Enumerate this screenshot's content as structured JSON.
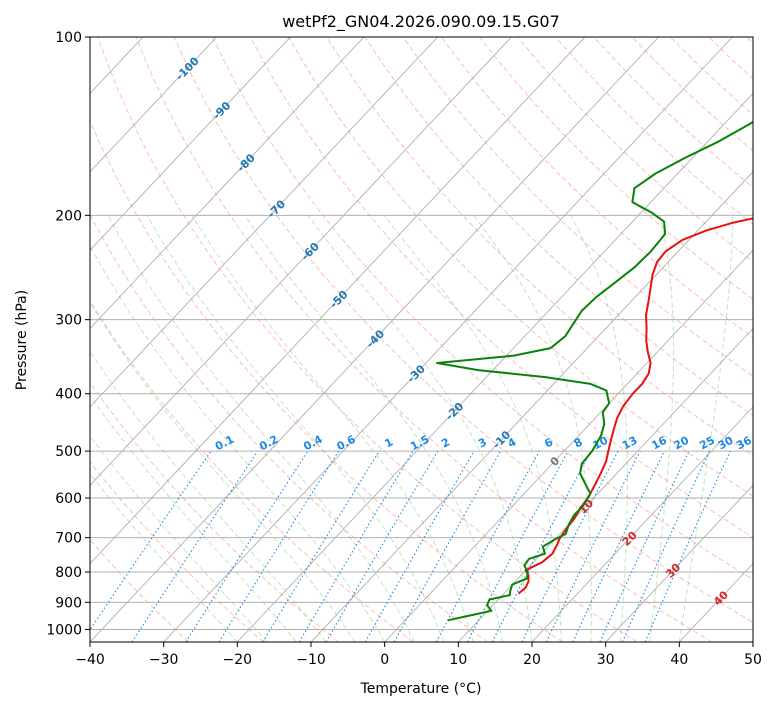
{
  "chart_data": {
    "type": "line",
    "subtype": "skew-t log-p diagram",
    "title": "wetPf2_GN04.2026.090.09.15.G07",
    "xlabel": "Temperature (°C)",
    "ylabel": "Pressure (hPa)",
    "xlim": [
      -40,
      50
    ],
    "ylim": [
      1050,
      100
    ],
    "x_ticks": [
      -40,
      -30,
      -20,
      -10,
      0,
      10,
      20,
      30,
      40,
      50
    ],
    "x_tick_labels": [
      "−40",
      "−30",
      "−20",
      "−10",
      "0",
      "10",
      "20",
      "30",
      "40",
      "50"
    ],
    "y_ticks": [
      100,
      200,
      300,
      400,
      500,
      600,
      700,
      800,
      900,
      1000
    ],
    "y_tick_labels": [
      "100",
      "200",
      "300",
      "400",
      "500",
      "600",
      "700",
      "800",
      "900",
      "1000"
    ],
    "grid": true,
    "isotherm_labels": [
      {
        "label": "-100",
        "p": 113
      },
      {
        "label": "-90",
        "p": 133
      },
      {
        "label": "-80",
        "p": 163
      },
      {
        "label": "-70",
        "p": 195
      },
      {
        "label": "-60",
        "p": 230
      },
      {
        "label": "-50",
        "p": 277
      },
      {
        "label": "-40",
        "p": 323
      },
      {
        "label": "-30",
        "p": 370
      },
      {
        "label": "-20",
        "p": 428
      },
      {
        "label": "-10",
        "p": 478
      },
      {
        "label": "0",
        "p": 520
      },
      {
        "label": "10",
        "p": 620
      },
      {
        "label": "20",
        "p": 702
      },
      {
        "label": "30",
        "p": 795
      },
      {
        "label": "40",
        "p": 885
      }
    ],
    "mixing_ratio_labels": [
      "0.1",
      "0.2",
      "0.4",
      "0.6",
      "1",
      "1.5",
      "2",
      "3",
      "4",
      "6",
      "8",
      "10",
      "13",
      "16",
      "20",
      "25",
      "30",
      "36"
    ],
    "mixing_ratio_label_positions": [
      -21.5,
      -15.5,
      -9.5,
      -5.0,
      0.8,
      5.0,
      8.5,
      13.5,
      17.5,
      22.5,
      26.5,
      29.5,
      33.5,
      37.5,
      40.5,
      44.0,
      46.5,
      49.0
    ],
    "series": [
      {
        "name": "Temperature",
        "color": "#e8110f",
        "points": [
          [
            12.0,
            870
          ],
          [
            12.2,
            850
          ],
          [
            11.8,
            830
          ],
          [
            11.0,
            810
          ],
          [
            10.0,
            795
          ],
          [
            11.2,
            770
          ],
          [
            11.5,
            745
          ],
          [
            11.0,
            720
          ],
          [
            10.5,
            700
          ],
          [
            10.2,
            675
          ],
          [
            10.0,
            650
          ],
          [
            9.5,
            625
          ],
          [
            9.2,
            600
          ],
          [
            8.5,
            570
          ],
          [
            7.8,
            545
          ],
          [
            7.0,
            520
          ],
          [
            6.0,
            500
          ],
          [
            5.0,
            480
          ],
          [
            4.0,
            460
          ],
          [
            3.0,
            440
          ],
          [
            2.3,
            420
          ],
          [
            2.0,
            400
          ],
          [
            2.0,
            385
          ],
          [
            1.6,
            370
          ],
          [
            0.5,
            355
          ],
          [
            -1.3,
            340
          ],
          [
            -3.0,
            325
          ],
          [
            -4.5,
            310
          ],
          [
            -6.2,
            295
          ],
          [
            -7.6,
            280
          ],
          [
            -9.1,
            265
          ],
          [
            -10.5,
            252
          ],
          [
            -11.5,
            240
          ],
          [
            -11.7,
            230
          ],
          [
            -10.9,
            220
          ],
          [
            -8.8,
            212
          ],
          [
            -6.3,
            206
          ],
          [
            -2.5,
            200
          ],
          [
            1.2,
            196
          ],
          [
            4.8,
            190
          ],
          [
            7.2,
            183
          ],
          [
            9.0,
            175
          ],
          [
            10.8,
            165
          ],
          [
            12.6,
            155
          ],
          [
            15.1,
            145
          ],
          [
            17.9,
            135
          ],
          [
            20.3,
            125
          ],
          [
            22.7,
            117
          ],
          [
            23.8,
            112
          ],
          [
            25.5,
            105
          ],
          [
            27.2,
            100
          ]
        ]
      },
      {
        "name": "Dewpoint",
        "color": "#0a820a",
        "points": [
          [
            5.8,
            965
          ],
          [
            8.5,
            945
          ],
          [
            10.5,
            930
          ],
          [
            9.2,
            910
          ],
          [
            8.8,
            890
          ],
          [
            11.0,
            875
          ],
          [
            10.5,
            860
          ],
          [
            10.0,
            840
          ],
          [
            11.2,
            820
          ],
          [
            10.5,
            800
          ],
          [
            9.2,
            780
          ],
          [
            9.0,
            760
          ],
          [
            10.5,
            745
          ],
          [
            9.3,
            725
          ],
          [
            10.0,
            705
          ],
          [
            10.8,
            690
          ],
          [
            10.0,
            665
          ],
          [
            9.5,
            640
          ],
          [
            9.6,
            620
          ],
          [
            9.0,
            590
          ],
          [
            6.8,
            565
          ],
          [
            5.0,
            545
          ],
          [
            4.0,
            525
          ],
          [
            3.8,
            500
          ],
          [
            3.0,
            470
          ],
          [
            2.0,
            450
          ],
          [
            0.3,
            430
          ],
          [
            0.0,
            415
          ],
          [
            -1.0,
            405
          ],
          [
            -2.0,
            395
          ],
          [
            -5.0,
            385
          ],
          [
            -12.0,
            375
          ],
          [
            -22.0,
            365
          ],
          [
            -28.5,
            355
          ],
          [
            -19.0,
            345
          ],
          [
            -15.0,
            335
          ],
          [
            -14.5,
            320
          ],
          [
            -15.0,
            305
          ],
          [
            -15.5,
            290
          ],
          [
            -15.3,
            275
          ],
          [
            -14.6,
            260
          ],
          [
            -13.9,
            245
          ],
          [
            -13.7,
            230
          ],
          [
            -14.0,
            215
          ],
          [
            -15.7,
            205
          ],
          [
            -18.5,
            198
          ],
          [
            -22.5,
            190
          ],
          [
            -24.0,
            180
          ],
          [
            -23.0,
            170
          ],
          [
            -21.0,
            160
          ],
          [
            -18.5,
            150
          ],
          [
            -16.5,
            140
          ],
          [
            -15.0,
            130
          ],
          [
            -14.2,
            120
          ],
          [
            -14.1,
            110
          ],
          [
            -13.8,
            100
          ]
        ]
      }
    ]
  },
  "style": {
    "temperature_color": "#e8110f",
    "dewpoint_color": "#0a820a",
    "isotherm_label_color": "#1f77b4",
    "warm_isotherm_label_color": "#d62728",
    "mixing_ratio_color": "#1e88e5",
    "dry_adiabat_color": "#fa8072",
    "moist_adiabat_color": "#7fbf7f",
    "grid_color": "#b0b0b0"
  }
}
